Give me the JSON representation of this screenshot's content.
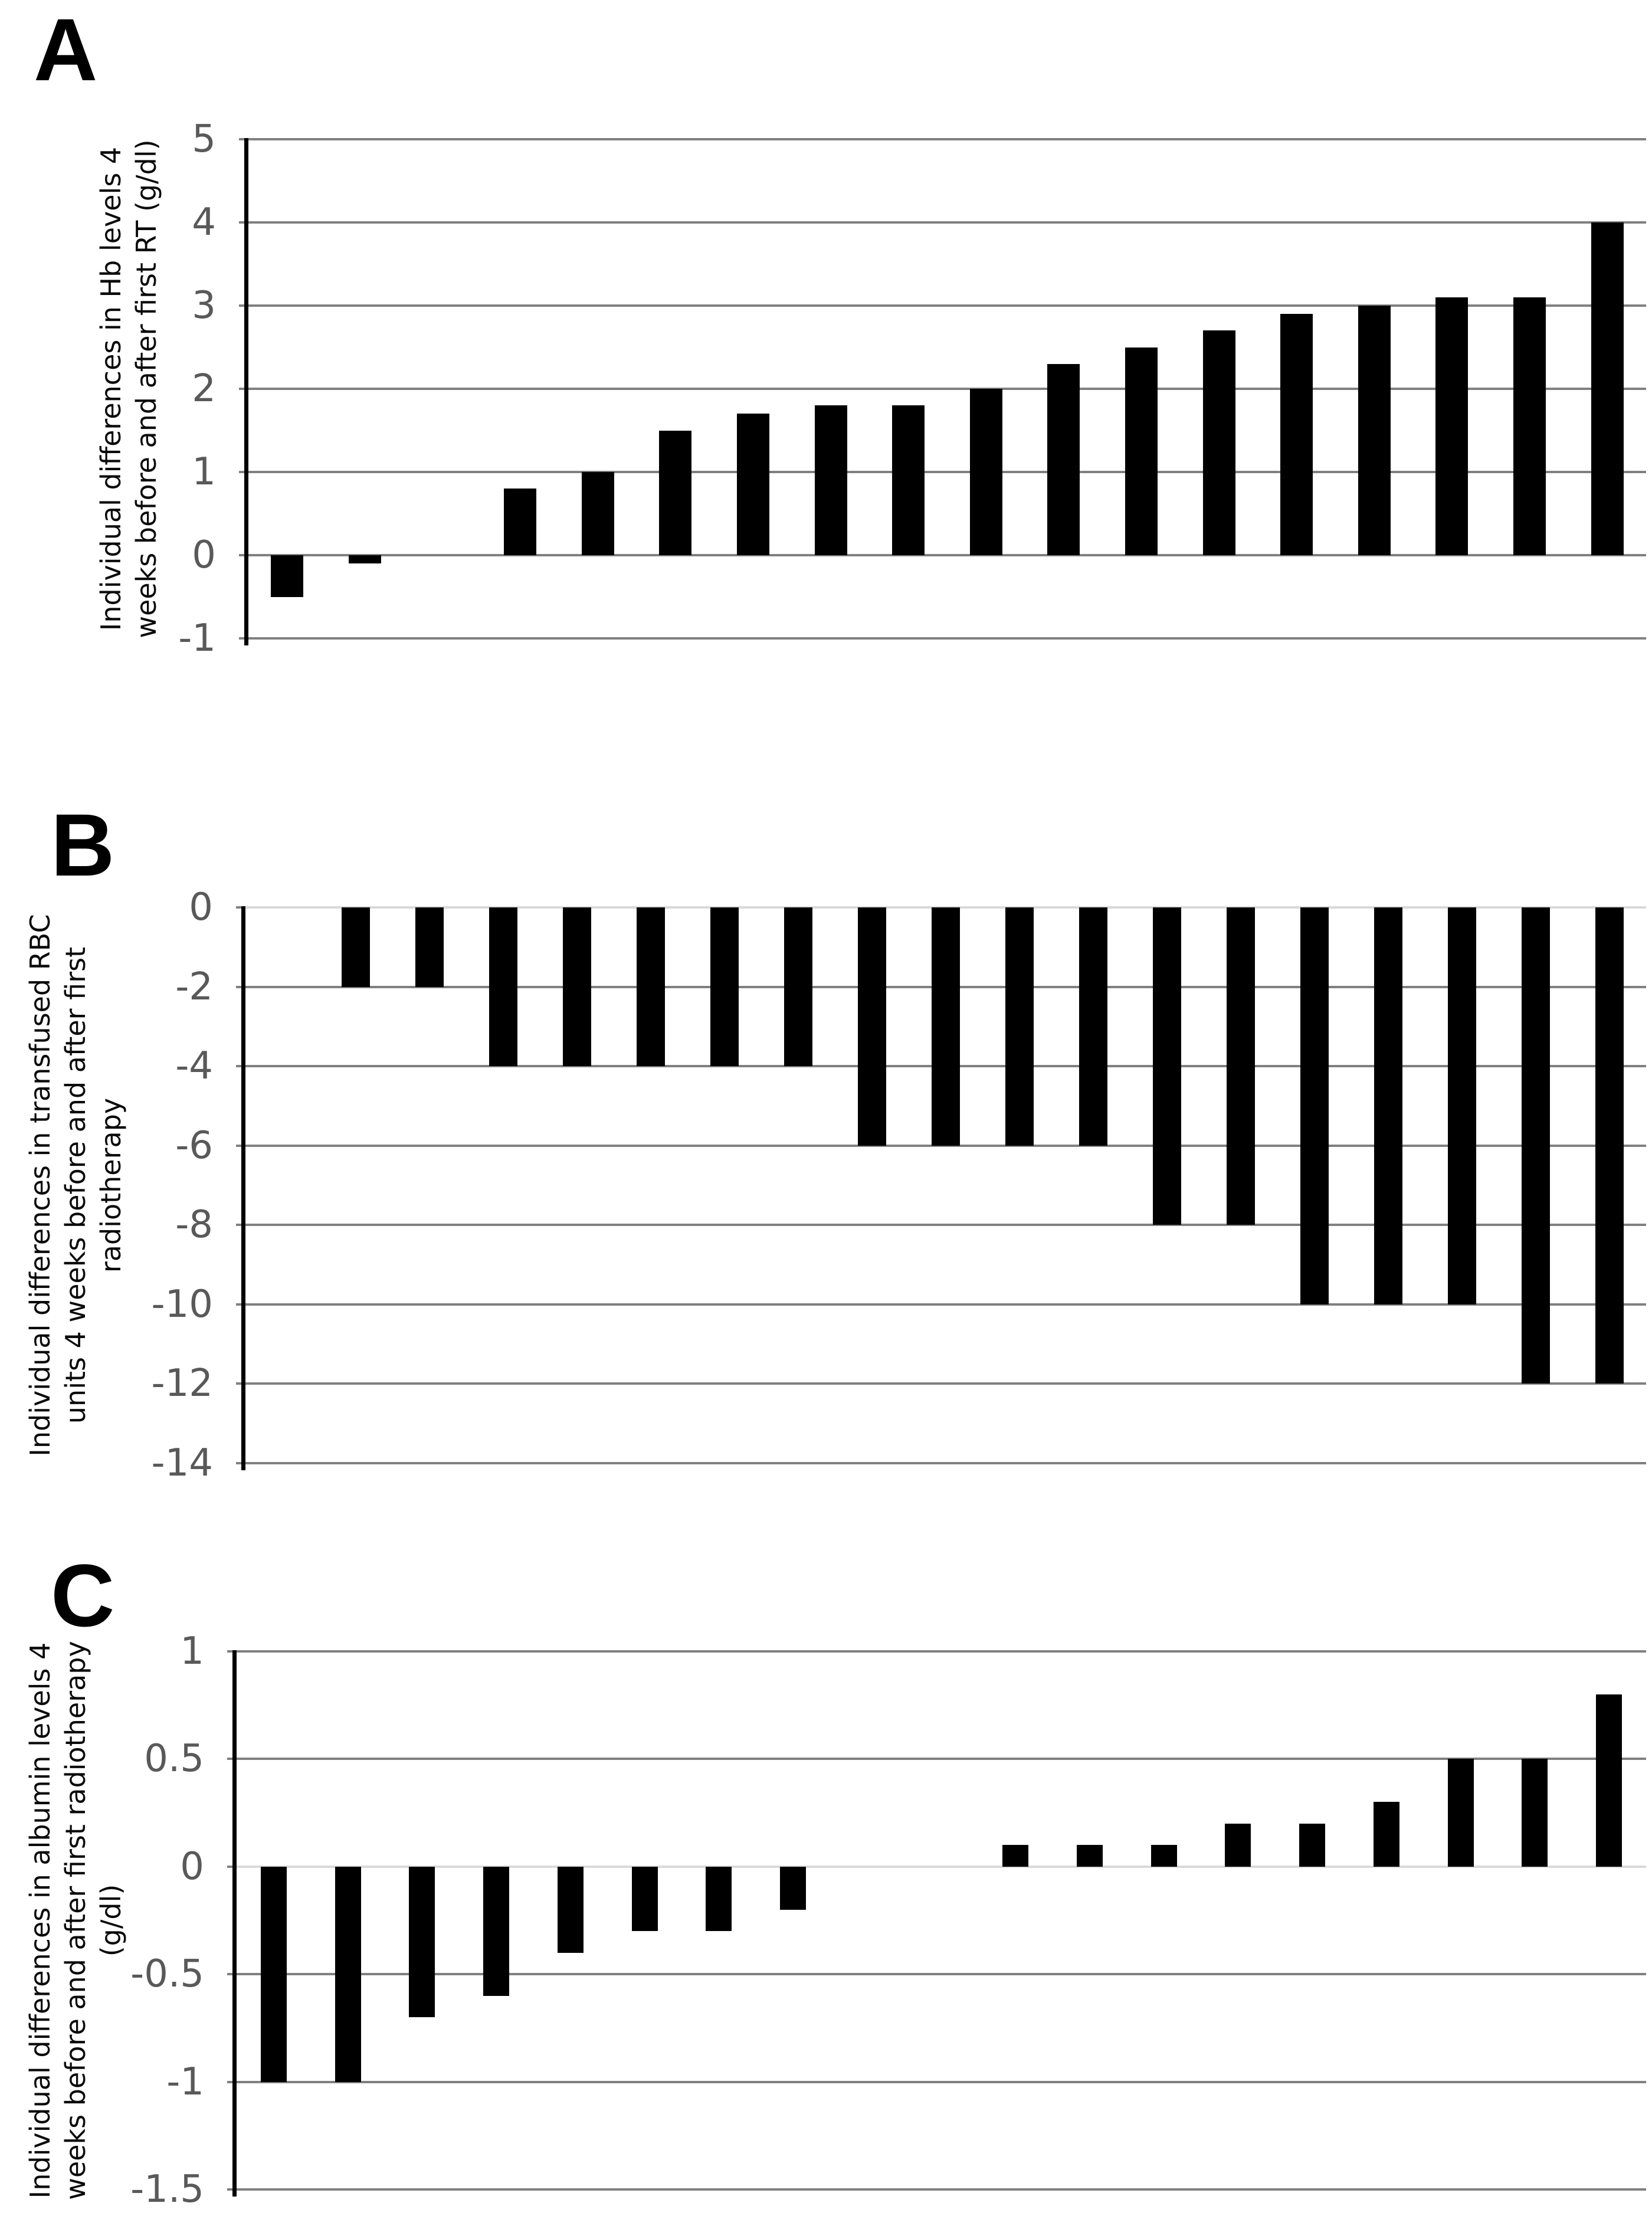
{
  "figure": {
    "background": "#ffffff",
    "panels": [
      {
        "letter": "A"
      },
      {
        "letter": "B"
      },
      {
        "letter": "C"
      }
    ]
  },
  "colors": {
    "bar": "#000000",
    "gridline": "#808080",
    "zero_axis_line": "#d9d9d9",
    "y_axis_line": "#000000",
    "tick_label": "#595959",
    "axis_title": "#0a0a0a",
    "panel_letter": "#000000"
  },
  "chart_data": [
    {
      "type": "bar",
      "panel": "A",
      "title": "",
      "xlabel": "",
      "ylabel": "Individual differences in Hb levels 4 weeks before and after first RT (g/dl)",
      "ylabel_lines": [
        "Individual differences in Hb levels 4",
        "weeks before and after first RT (g/dl)"
      ],
      "categories": [],
      "values": [
        -0.5,
        -0.1,
        0,
        0.8,
        1,
        1.5,
        1.7,
        1.8,
        1.8,
        2,
        2.3,
        2.5,
        2.7,
        2.9,
        3,
        3.1,
        3.1,
        4
      ],
      "ylim": [
        -1,
        5
      ],
      "yticks": [
        5,
        4,
        3,
        2,
        1,
        0,
        -1
      ],
      "grid": true,
      "legend": false,
      "zero_axis_light": false
    },
    {
      "type": "bar",
      "panel": "B",
      "title": "",
      "xlabel": "",
      "ylabel": "Individual differences in transfused RBC units 4 weeks before and after first radiotherapy",
      "ylabel_lines": [
        "Individual differences in transfused RBC",
        "units 4 weeks before and after first",
        "radiotherapy"
      ],
      "categories": [],
      "values": [
        0,
        -2,
        -2,
        -4,
        -4,
        -4,
        -4,
        -4,
        -6,
        -6,
        -6,
        -6,
        -8,
        -8,
        -10,
        -10,
        -10,
        -12,
        -12
      ],
      "ylim": [
        -14,
        0
      ],
      "yticks": [
        0,
        -2,
        -4,
        -6,
        -8,
        -10,
        -12,
        -14
      ],
      "grid": true,
      "legend": false,
      "zero_axis_light": true
    },
    {
      "type": "bar",
      "panel": "C",
      "title": "",
      "xlabel": "",
      "ylabel": "Individual differences in albumin levels 4 weeks before and after first radiotherapy (g/dl)",
      "ylabel_lines": [
        "Individual differences in albumin levels 4",
        "weeks before and after first radiotherapy",
        "(g/dl)"
      ],
      "categories": [],
      "values": [
        -1,
        -1,
        -0.7,
        -0.6,
        -0.4,
        -0.3,
        -0.3,
        -0.2,
        0,
        0,
        0.1,
        0.1,
        0.1,
        0.2,
        0.2,
        0.3,
        0.5,
        0.5,
        0.8
      ],
      "ylim": [
        -1.5,
        1
      ],
      "yticks": [
        1,
        0.5,
        0,
        -0.5,
        -1,
        -1.5
      ],
      "grid": true,
      "legend": false,
      "zero_axis_light": true
    }
  ]
}
